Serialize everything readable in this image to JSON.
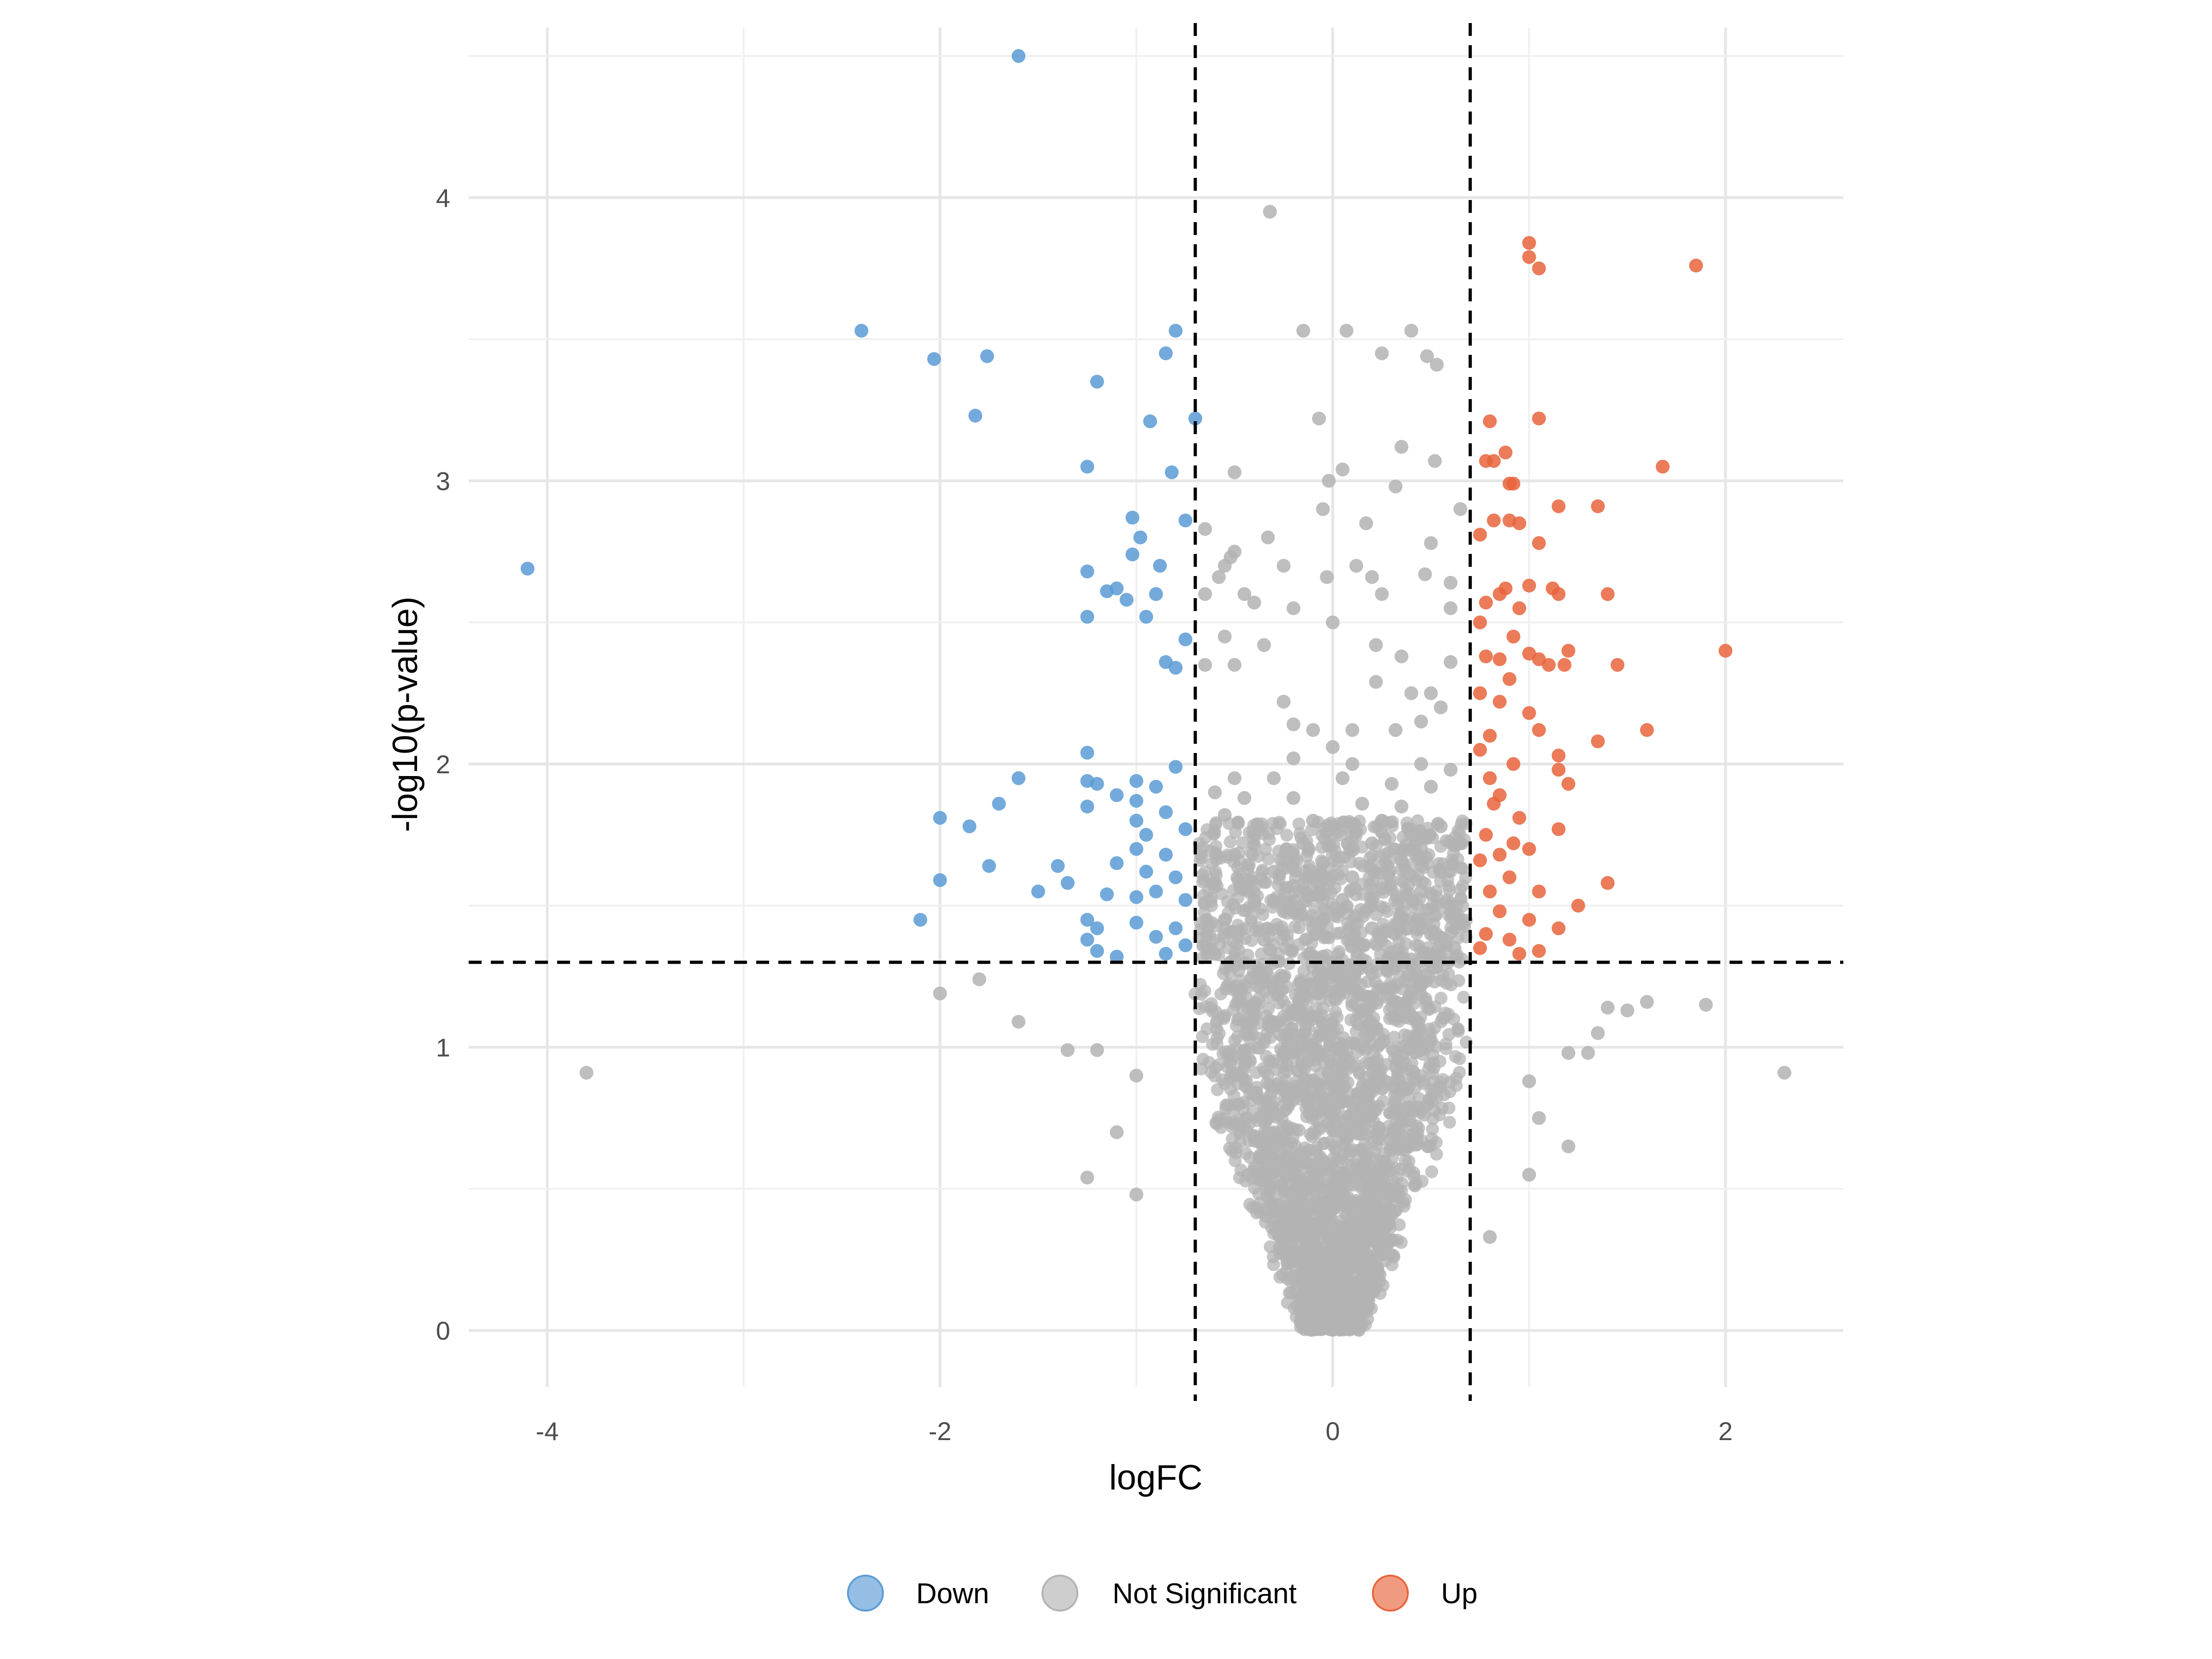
{
  "chart_data": {
    "type": "scatter",
    "title": "",
    "xlabel": "logFC",
    "ylabel": "-log10(p-value)",
    "xlim": [
      -4.4,
      2.6
    ],
    "ylim": [
      -0.2,
      4.6
    ],
    "x_ticks": [
      -4,
      -2,
      0,
      2
    ],
    "x_tick_labels": [
      "-4",
      "-2",
      "0",
      "2"
    ],
    "y_ticks": [
      0,
      1,
      2,
      3,
      4
    ],
    "y_tick_labels": [
      "0",
      "1",
      "2",
      "3",
      "4"
    ],
    "grid": true,
    "thresholds": {
      "logFC": [
        -0.7,
        0.7
      ],
      "neg_log10_p": 1.3
    },
    "legend": {
      "position": "bottom",
      "entries": [
        {
          "label": "Down",
          "color": "#5b9bd5"
        },
        {
          "label": "Not Significant",
          "color": "#b3b3b3"
        },
        {
          "label": "Up",
          "color": "#e8643c"
        }
      ]
    },
    "series": [
      {
        "name": "Down",
        "color": "#5b9bd5",
        "points": [
          [
            -1.6,
            4.5
          ],
          [
            -2.4,
            3.53
          ],
          [
            -2.03,
            3.43
          ],
          [
            -1.76,
            3.44
          ],
          [
            -1.82,
            3.23
          ],
          [
            -4.1,
            2.69
          ],
          [
            -0.8,
            3.53
          ],
          [
            -0.85,
            3.45
          ],
          [
            -1.2,
            3.35
          ],
          [
            -0.93,
            3.21
          ],
          [
            -0.7,
            3.22
          ],
          [
            -1.25,
            3.05
          ],
          [
            -0.82,
            3.03
          ],
          [
            -1.02,
            2.87
          ],
          [
            -0.75,
            2.86
          ],
          [
            -0.98,
            2.8
          ],
          [
            -1.02,
            2.74
          ],
          [
            -0.88,
            2.7
          ],
          [
            -1.25,
            2.68
          ],
          [
            -1.15,
            2.61
          ],
          [
            -1.1,
            2.62
          ],
          [
            -1.05,
            2.58
          ],
          [
            -0.9,
            2.6
          ],
          [
            -1.25,
            2.52
          ],
          [
            -0.95,
            2.52
          ],
          [
            -0.75,
            2.44
          ],
          [
            -0.85,
            2.36
          ],
          [
            -0.8,
            2.34
          ],
          [
            -1.25,
            2.04
          ],
          [
            -0.8,
            1.99
          ],
          [
            -1.6,
            1.95
          ],
          [
            -1.25,
            1.94
          ],
          [
            -1.2,
            1.93
          ],
          [
            -1.0,
            1.94
          ],
          [
            -0.9,
            1.92
          ],
          [
            -1.1,
            1.89
          ],
          [
            -1.0,
            1.87
          ],
          [
            -1.25,
            1.85
          ],
          [
            -1.7,
            1.86
          ],
          [
            -2.0,
            1.81
          ],
          [
            -1.85,
            1.78
          ],
          [
            -1.0,
            1.8
          ],
          [
            -0.85,
            1.83
          ],
          [
            -0.75,
            1.77
          ],
          [
            -0.95,
            1.75
          ],
          [
            -1.0,
            1.7
          ],
          [
            -0.85,
            1.68
          ],
          [
            -1.75,
            1.64
          ],
          [
            -1.4,
            1.64
          ],
          [
            -1.1,
            1.65
          ],
          [
            -0.95,
            1.62
          ],
          [
            -0.8,
            1.6
          ],
          [
            -2.0,
            1.59
          ],
          [
            -1.5,
            1.55
          ],
          [
            -1.35,
            1.58
          ],
          [
            -1.15,
            1.54
          ],
          [
            -1.0,
            1.53
          ],
          [
            -0.9,
            1.55
          ],
          [
            -0.75,
            1.52
          ],
          [
            -2.1,
            1.45
          ],
          [
            -1.25,
            1.45
          ],
          [
            -1.0,
            1.44
          ],
          [
            -0.8,
            1.42
          ],
          [
            -1.2,
            1.42
          ],
          [
            -1.25,
            1.38
          ],
          [
            -0.9,
            1.39
          ],
          [
            -0.75,
            1.36
          ],
          [
            -1.2,
            1.34
          ],
          [
            -1.1,
            1.32
          ],
          [
            -0.85,
            1.33
          ]
        ]
      },
      {
        "name": "Up",
        "color": "#e8643c",
        "points": [
          [
            1.0,
            3.84
          ],
          [
            1.0,
            3.79
          ],
          [
            1.05,
            3.75
          ],
          [
            1.85,
            3.76
          ],
          [
            0.8,
            3.21
          ],
          [
            1.05,
            3.22
          ],
          [
            0.88,
            3.1
          ],
          [
            0.78,
            3.07
          ],
          [
            0.82,
            3.07
          ],
          [
            1.68,
            3.05
          ],
          [
            0.9,
            2.99
          ],
          [
            0.92,
            2.99
          ],
          [
            1.15,
            2.91
          ],
          [
            1.35,
            2.91
          ],
          [
            0.82,
            2.86
          ],
          [
            0.9,
            2.86
          ],
          [
            0.95,
            2.85
          ],
          [
            0.75,
            2.81
          ],
          [
            1.05,
            2.78
          ],
          [
            1.0,
            2.63
          ],
          [
            1.12,
            2.62
          ],
          [
            0.88,
            2.62
          ],
          [
            0.85,
            2.6
          ],
          [
            1.15,
            2.6
          ],
          [
            1.4,
            2.6
          ],
          [
            0.78,
            2.57
          ],
          [
            0.95,
            2.55
          ],
          [
            0.75,
            2.5
          ],
          [
            0.92,
            2.45
          ],
          [
            2.0,
            2.4
          ],
          [
            1.0,
            2.39
          ],
          [
            1.2,
            2.4
          ],
          [
            0.78,
            2.38
          ],
          [
            0.85,
            2.37
          ],
          [
            1.05,
            2.37
          ],
          [
            1.1,
            2.35
          ],
          [
            1.18,
            2.35
          ],
          [
            1.45,
            2.35
          ],
          [
            0.9,
            2.3
          ],
          [
            0.75,
            2.25
          ],
          [
            0.85,
            2.22
          ],
          [
            1.0,
            2.18
          ],
          [
            1.05,
            2.12
          ],
          [
            1.6,
            2.12
          ],
          [
            0.8,
            2.1
          ],
          [
            1.35,
            2.08
          ],
          [
            0.75,
            2.05
          ],
          [
            1.15,
            2.03
          ],
          [
            0.92,
            2.0
          ],
          [
            1.15,
            1.98
          ],
          [
            0.8,
            1.95
          ],
          [
            1.2,
            1.93
          ],
          [
            0.85,
            1.89
          ],
          [
            0.82,
            1.86
          ],
          [
            0.95,
            1.81
          ],
          [
            1.15,
            1.77
          ],
          [
            0.78,
            1.75
          ],
          [
            0.92,
            1.72
          ],
          [
            1.0,
            1.7
          ],
          [
            0.85,
            1.68
          ],
          [
            0.75,
            1.66
          ],
          [
            1.4,
            1.58
          ],
          [
            0.9,
            1.6
          ],
          [
            1.05,
            1.55
          ],
          [
            0.8,
            1.55
          ],
          [
            1.25,
            1.5
          ],
          [
            0.85,
            1.48
          ],
          [
            1.0,
            1.45
          ],
          [
            1.15,
            1.42
          ],
          [
            0.78,
            1.4
          ],
          [
            0.9,
            1.38
          ],
          [
            0.75,
            1.35
          ],
          [
            0.95,
            1.33
          ],
          [
            1.05,
            1.34
          ]
        ]
      },
      {
        "name": "Not Significant",
        "color": "#b3b3b3",
        "points": [
          [
            -0.32,
            3.95
          ],
          [
            -0.15,
            3.53
          ],
          [
            0.07,
            3.53
          ],
          [
            0.4,
            3.53
          ],
          [
            0.25,
            3.45
          ],
          [
            0.48,
            3.44
          ],
          [
            0.53,
            3.41
          ],
          [
            -0.07,
            3.22
          ],
          [
            0.35,
            3.12
          ],
          [
            0.52,
            3.07
          ],
          [
            -0.5,
            3.03
          ],
          [
            -0.02,
            3.0
          ],
          [
            0.05,
            3.04
          ],
          [
            0.32,
            2.98
          ],
          [
            -0.05,
            2.9
          ],
          [
            -0.65,
            2.83
          ],
          [
            0.17,
            2.85
          ],
          [
            -0.33,
            2.8
          ],
          [
            0.5,
            2.78
          ],
          [
            0.65,
            2.9
          ],
          [
            -0.52,
            2.73
          ],
          [
            -0.5,
            2.75
          ],
          [
            -0.55,
            2.7
          ],
          [
            -0.25,
            2.7
          ],
          [
            0.12,
            2.7
          ],
          [
            0.47,
            2.67
          ],
          [
            -0.58,
            2.66
          ],
          [
            0.2,
            2.66
          ],
          [
            -0.03,
            2.66
          ],
          [
            0.6,
            2.64
          ],
          [
            -0.65,
            2.6
          ],
          [
            -0.45,
            2.6
          ],
          [
            0.25,
            2.6
          ],
          [
            0.6,
            2.55
          ],
          [
            -0.4,
            2.57
          ],
          [
            -0.2,
            2.55
          ],
          [
            0.0,
            2.5
          ],
          [
            -0.55,
            2.45
          ],
          [
            -0.35,
            2.42
          ],
          [
            0.22,
            2.42
          ],
          [
            -0.65,
            2.35
          ],
          [
            -0.5,
            2.35
          ],
          [
            0.35,
            2.38
          ],
          [
            0.6,
            2.36
          ],
          [
            0.22,
            2.29
          ],
          [
            0.4,
            2.25
          ],
          [
            0.5,
            2.25
          ],
          [
            -0.25,
            2.22
          ],
          [
            0.55,
            2.2
          ],
          [
            0.45,
            2.15
          ],
          [
            -0.2,
            2.14
          ],
          [
            -0.1,
            2.12
          ],
          [
            0.1,
            2.12
          ],
          [
            0.32,
            2.12
          ],
          [
            0.0,
            2.06
          ],
          [
            -0.2,
            2.02
          ],
          [
            0.1,
            2.0
          ],
          [
            0.45,
            2.0
          ],
          [
            0.6,
            1.98
          ],
          [
            -0.5,
            1.95
          ],
          [
            -0.3,
            1.95
          ],
          [
            0.05,
            1.95
          ],
          [
            0.3,
            1.93
          ],
          [
            0.5,
            1.92
          ],
          [
            -0.6,
            1.9
          ],
          [
            -0.45,
            1.88
          ],
          [
            -0.2,
            1.88
          ],
          [
            0.15,
            1.86
          ],
          [
            0.35,
            1.85
          ],
          [
            -0.55,
            1.82
          ],
          [
            -0.1,
            1.8
          ],
          [
            0.0,
            1.78
          ],
          [
            0.25,
            1.8
          ],
          [
            0.55,
            1.78
          ],
          [
            -0.4,
            1.75
          ],
          [
            -0.15,
            1.72
          ],
          [
            0.2,
            1.72
          ],
          [
            0.45,
            1.7
          ],
          [
            0.65,
            1.72
          ],
          [
            -0.5,
            1.68
          ],
          [
            -0.05,
            1.65
          ],
          [
            0.35,
            1.66
          ],
          [
            -0.3,
            1.62
          ],
          [
            0.1,
            1.6
          ],
          [
            0.55,
            1.62
          ],
          [
            -0.6,
            1.58
          ],
          [
            -0.2,
            1.57
          ],
          [
            0.25,
            1.56
          ],
          [
            0.45,
            1.55
          ],
          [
            -0.4,
            1.52
          ],
          [
            0.05,
            1.52
          ],
          [
            0.6,
            1.5
          ],
          [
            -0.25,
            1.48
          ],
          [
            0.35,
            1.46
          ],
          [
            -0.55,
            1.45
          ],
          [
            -0.1,
            1.42
          ],
          [
            0.2,
            1.42
          ],
          [
            0.5,
            1.4
          ],
          [
            -0.35,
            1.38
          ],
          [
            0.15,
            1.36
          ],
          [
            0.62,
            1.35
          ],
          [
            -0.6,
            1.33
          ],
          [
            -0.05,
            1.32
          ],
          [
            0.4,
            1.31
          ],
          [
            -2.0,
            1.19
          ],
          [
            -1.8,
            1.24
          ],
          [
            -1.6,
            1.09
          ],
          [
            -1.35,
            0.99
          ],
          [
            -1.2,
            0.99
          ],
          [
            -1.25,
            0.54
          ],
          [
            -1.0,
            0.48
          ],
          [
            -3.8,
            0.91
          ],
          [
            2.3,
            0.91
          ],
          [
            1.9,
            1.15
          ],
          [
            1.6,
            1.16
          ],
          [
            1.5,
            1.13
          ],
          [
            1.4,
            1.14
          ],
          [
            1.35,
            1.05
          ],
          [
            1.3,
            0.98
          ],
          [
            1.2,
            0.98
          ],
          [
            1.2,
            0.65
          ],
          [
            1.0,
            0.55
          ],
          [
            0.8,
            0.33
          ],
          [
            -1.0,
            0.9
          ],
          [
            -1.1,
            0.7
          ],
          [
            1.0,
            0.88
          ],
          [
            1.05,
            0.75
          ]
        ]
      }
    ]
  }
}
